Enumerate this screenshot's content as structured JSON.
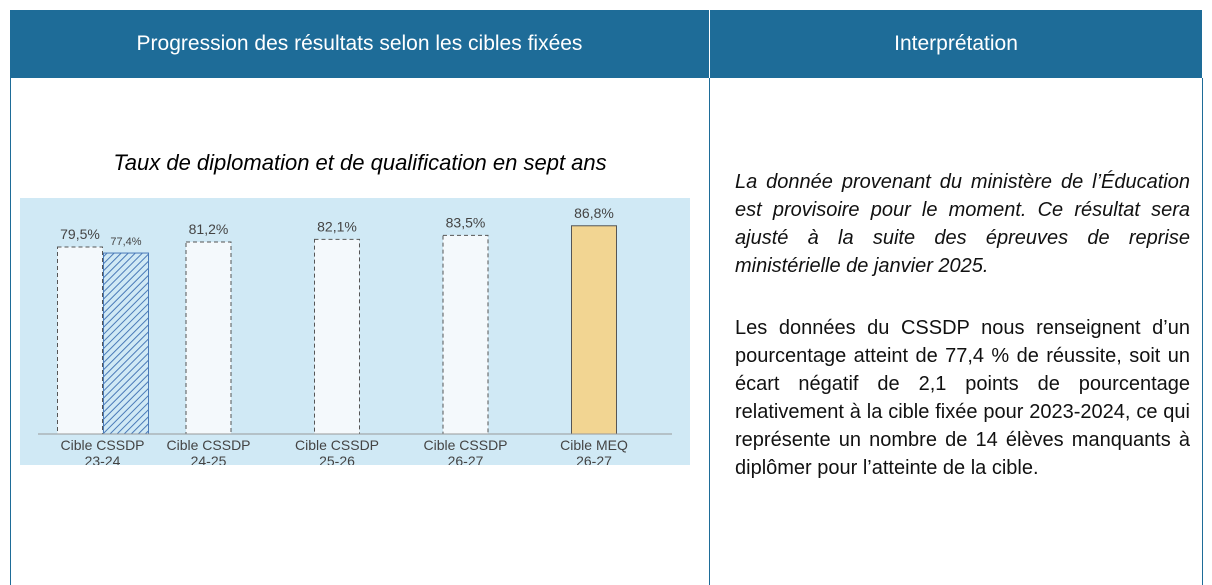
{
  "table": {
    "headers": [
      "Progression des résultats selon les cibles fixées",
      "Interprétation"
    ]
  },
  "chart_data": {
    "type": "bar",
    "title": "Taux de diplomation et de qualification en sept ans",
    "categories": [
      [
        "Cible CSSDP",
        "23-24"
      ],
      [
        "Cible CSSDP",
        "24-25"
      ],
      [
        "Cible CSSDP",
        "25-26"
      ],
      [
        "Cible CSSDP",
        "26-27"
      ],
      [
        "Cible MEQ",
        "26-27"
      ]
    ],
    "series": [
      {
        "colors": [
          "#f4f9fc",
          "#f4f9fc",
          "#f4f9fc",
          "#f4f9fc",
          "#f2d592"
        ],
        "values": [
          79.5,
          81.2,
          82.1,
          83.5,
          86.8
        ],
        "value_labels": [
          "79,5%",
          "81,2%",
          "82,1%",
          "83,5%",
          "86,8%"
        ]
      },
      {
        "color": "#4a7ab8",
        "hatched": true,
        "values": [
          77.4,
          null,
          null,
          null,
          null
        ],
        "value_labels": [
          "77,4%",
          null,
          null,
          null,
          null
        ]
      }
    ],
    "ylim": [
      15,
      95
    ]
  },
  "interpretation": [
    "La donnée provenant du ministère de l’Éducation est provisoire pour le moment. Ce résultat sera ajusté à la suite des épreuves de reprise ministérielle de janvier 2025.",
    "Les données du CSSDP nous renseignent d’un pourcentage atteint de 77,4 % de réussite, soit un écart négatif de 2,1 points de pourcentage relativement à la cible fixée pour 2023-2024, ce qui représente un nombre de 14 élèves manquants à diplômer pour l’atteinte de la cible."
  ]
}
